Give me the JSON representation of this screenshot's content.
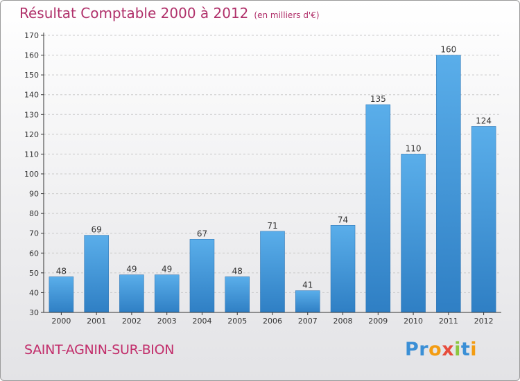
{
  "chart_data": {
    "type": "bar",
    "title": "Résultat Comptable 2000 à 2012",
    "subtitle": "(en milliers d'€)",
    "categories": [
      "2000",
      "2001",
      "2002",
      "2003",
      "2004",
      "2005",
      "2006",
      "2007",
      "2008",
      "2009",
      "2010",
      "2011",
      "2012"
    ],
    "values": [
      48,
      69,
      49,
      49,
      67,
      48,
      71,
      41,
      74,
      135,
      110,
      160,
      124
    ],
    "ylim": [
      30,
      170
    ],
    "yticks": [
      30,
      40,
      50,
      60,
      70,
      80,
      90,
      100,
      110,
      120,
      130,
      140,
      150,
      160,
      170
    ],
    "grid": true,
    "bar_color": "#3d8fd4",
    "axis_color": "#333333"
  },
  "footer": {
    "commune": "SAINT-AGNIN-SUR-BION",
    "logo_letters": [
      {
        "ch": "P",
        "color": "#3a8fd6"
      },
      {
        "ch": "r",
        "color": "#3a8fd6"
      },
      {
        "ch": "o",
        "color": "#f39c12"
      },
      {
        "ch": "x",
        "color": "#e74c3c"
      },
      {
        "ch": "i",
        "color": "#8cc63f"
      },
      {
        "ch": "t",
        "color": "#3a8fd6"
      },
      {
        "ch": "i",
        "color": "#f39c12"
      }
    ]
  }
}
